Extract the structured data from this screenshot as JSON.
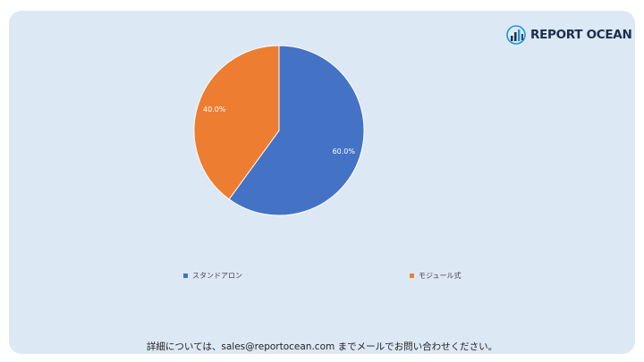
{
  "brand": {
    "name": "REPORT OCEAN",
    "icon": "bar-chart-globe-icon",
    "color": "#1b2e4d",
    "accent": "#1a9ad6"
  },
  "chart_data": {
    "type": "pie",
    "slices": [
      {
        "label": "スタンドアロン",
        "value": 60.0,
        "display": "60.0%",
        "color": "#4472c4"
      },
      {
        "label": "モジュール式",
        "value": 40.0,
        "display": "40.0%",
        "color": "#ed7d31"
      }
    ],
    "start_angle_deg": 0,
    "direction": "clockwise",
    "legend_position": "bottom"
  },
  "footer": {
    "text": "詳細については、sales@reportocean.com までメールでお問い合わせください。"
  },
  "colors": {
    "background": "#dde8f5",
    "page": "#ffffff"
  }
}
